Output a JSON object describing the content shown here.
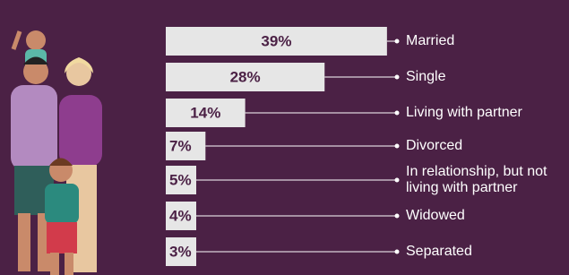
{
  "chart_data": {
    "type": "bar",
    "categories": [
      "Married",
      "Single",
      "Living with partner",
      "Divorced",
      "In relationship, but not living with partner",
      "Widowed",
      "Separated"
    ],
    "values": [
      39,
      28,
      14,
      7,
      5,
      4,
      3
    ],
    "value_labels": [
      "39%",
      "28%",
      "14%",
      "7%",
      "5%",
      "4%",
      "3%"
    ],
    "color": "#e6e6e6"
  }
}
